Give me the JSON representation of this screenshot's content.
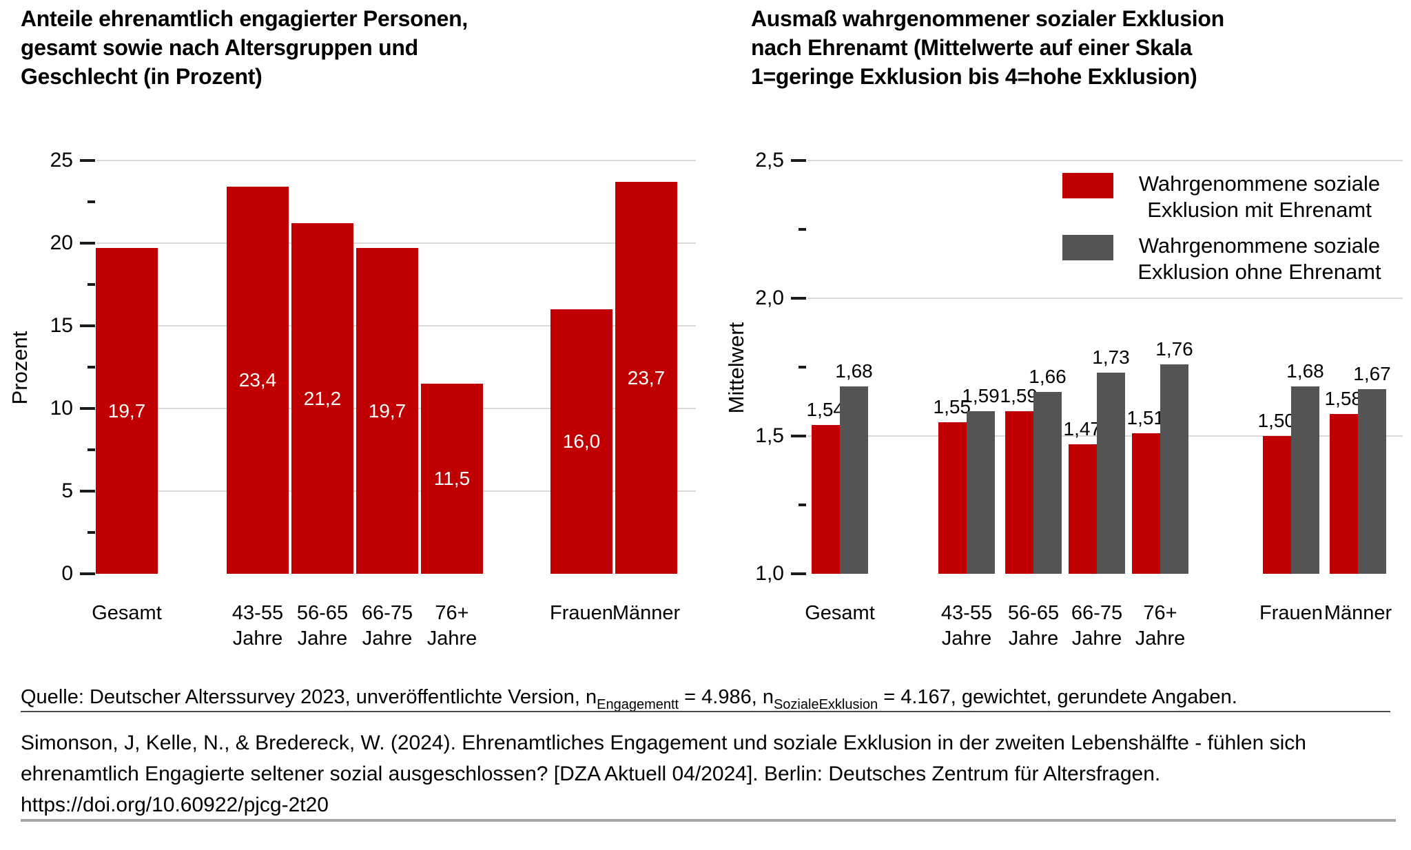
{
  "colors": {
    "red": "#C00000",
    "gray": "#545454",
    "gridline": "#D9D9D9",
    "tick": "#1a1a1a",
    "value_label_light": "#FFFFFF",
    "value_label_dark": "#000000",
    "separator_thin": "#4a4a4a",
    "separator_bottom": "#A6A6A6"
  },
  "chart_data": [
    {
      "type": "bar",
      "title": "Anteile ehrenamtlich engagierter Personen, gesamt sowie nach Altersgruppen und Geschlecht (in Prozent)",
      "title_lines": [
        "Anteile ehrenamtlich engagierter Personen,",
        "gesamt sowie nach Altersgruppen und",
        "Geschlecht (in Prozent)"
      ],
      "xlabel": "",
      "ylabel": "Prozent",
      "ylim": [
        0,
        25
      ],
      "grid": true,
      "categories": [
        "Gesamt",
        "43-55 Jahre",
        "56-65 Jahre",
        "66-75 Jahre",
        "76+ Jahre",
        "Frauen",
        "Männer"
      ],
      "category_label_lines": [
        [
          "Gesamt"
        ],
        [
          "43-55",
          "Jahre"
        ],
        [
          "56-65",
          "Jahre"
        ],
        [
          "66-75",
          "Jahre"
        ],
        [
          "76+",
          "Jahre"
        ],
        [
          "Frauen"
        ],
        [
          "Männer"
        ]
      ],
      "values": [
        19.7,
        23.4,
        21.2,
        19.7,
        11.5,
        16.0,
        23.7
      ],
      "value_labels": [
        "19,7",
        "23,4",
        "21,2",
        "19,7",
        "11,5",
        "16,0",
        "23,7"
      ],
      "bar_color": "#C00000",
      "value_label_style": "white-inside-bar",
      "yticks_major": [
        {
          "value": 0,
          "label": "0"
        },
        {
          "value": 5,
          "label": "5"
        },
        {
          "value": 10,
          "label": "10"
        },
        {
          "value": 15,
          "label": "15"
        },
        {
          "value": 20,
          "label": "20"
        },
        {
          "value": 25,
          "label": "25"
        }
      ],
      "yticks_minor": [
        2.5,
        7.5,
        12.5,
        17.5,
        22.5
      ],
      "legend": null
    },
    {
      "type": "bar",
      "title": "Ausmaß wahrgenommener sozialer Exklusion nach Ehrenamt (Mittelwerte auf einer Skala 1=geringe Exklusion bis 4=hohe Exklusion)",
      "title_lines": [
        "Ausmaß wahrgenommener sozialer Exklusion",
        "nach Ehrenamt (Mittelwerte auf einer Skala",
        "1=geringe Exklusion bis 4=hohe Exklusion)"
      ],
      "xlabel": "",
      "ylabel": "Mittelwert",
      "ylim": [
        1.0,
        2.5
      ],
      "grid": true,
      "legend_position": "top-right",
      "categories": [
        "Gesamt",
        "43-55 Jahre",
        "56-65 Jahre",
        "66-75 Jahre",
        "76+ Jahre",
        "Frauen",
        "Männer"
      ],
      "category_label_lines": [
        [
          "Gesamt"
        ],
        [
          "43-55",
          "Jahre"
        ],
        [
          "56-65",
          "Jahre"
        ],
        [
          "66-75",
          "Jahre"
        ],
        [
          "76+",
          "Jahre"
        ],
        [
          "Frauen"
        ],
        [
          "Männer"
        ]
      ],
      "series": [
        {
          "name": "Wahrgenommene soziale Exklusion mit Ehrenamt",
          "legend_lines": [
            "Wahrgenommene soziale",
            "Exklusion mit Ehrenamt"
          ],
          "color": "#C00000",
          "values": [
            1.54,
            1.55,
            1.59,
            1.47,
            1.51,
            1.5,
            1.58
          ],
          "value_labels": [
            "1,54",
            "1,55",
            "1,59",
            "1,47",
            "1,51",
            "1,50",
            "1,58"
          ]
        },
        {
          "name": "Wahrgenommene soziale Exklusion ohne Ehrenamt",
          "legend_lines": [
            "Wahrgenommene soziale",
            "Exklusion ohne Ehrenamt"
          ],
          "color": "#545454",
          "values": [
            1.68,
            1.59,
            1.66,
            1.73,
            1.76,
            1.68,
            1.67
          ],
          "value_labels": [
            "1,68",
            "1,59",
            "1,66",
            "1,73",
            "1,76",
            "1,68",
            "1,67"
          ]
        }
      ],
      "yticks_major": [
        {
          "value": 1.0,
          "label": "1,0"
        },
        {
          "value": 1.5,
          "label": "1,5"
        },
        {
          "value": 2.0,
          "label": "2,0"
        },
        {
          "value": 2.5,
          "label": "2,5"
        }
      ],
      "yticks_minor": [
        1.25,
        1.75,
        2.25
      ]
    }
  ],
  "footer": {
    "source_segments": [
      {
        "text": "Quelle: Deutscher Alterssurvey 2023, unveröffentlichte Version, n",
        "subscript": false
      },
      {
        "text": "Engagementt",
        "subscript": true
      },
      {
        "text": " = 4.986, n",
        "subscript": false
      },
      {
        "text": "SozialeExklusion",
        "subscript": true
      },
      {
        "text": " = 4.167, gewichtet, gerundete Angaben.",
        "subscript": false
      }
    ],
    "citation_lines": [
      "Simonson, J, Kelle, N., & Bredereck, W. (2024). Ehrenamtliches Engagement und soziale Exklusion in der zweiten Lebenshälfte - fühlen sich",
      "ehrenamtlich Engagierte seltener sozial ausgeschlossen? [DZA Aktuell 04/2024]. Berlin: Deutsches Zentrum für Altersfragen.",
      "https://doi.org/10.60922/pjcg-2t20"
    ]
  }
}
